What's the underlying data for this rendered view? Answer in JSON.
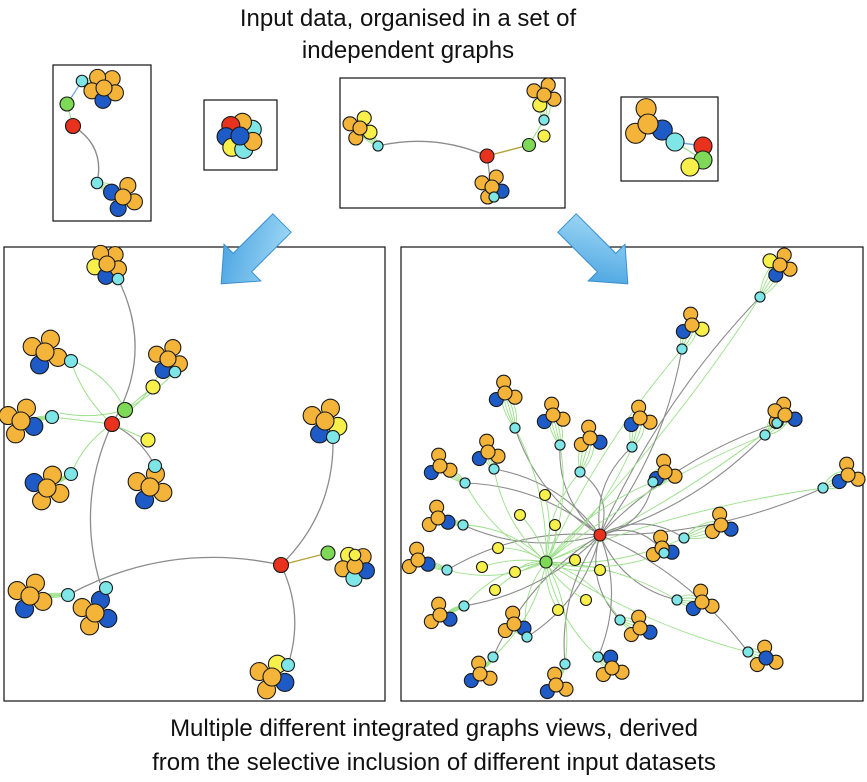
{
  "top_caption": {
    "line1": "Input data, organised in a set of",
    "line2": "independent graphs"
  },
  "bottom_caption": {
    "line1": "Multiple different integrated graphs views, derived",
    "line2": "from the selective inclusion of different input datasets"
  },
  "colors": {
    "node_orange": "#F4B43A",
    "node_blue": "#1E5BC6",
    "node_cyan": "#7FE6E8",
    "node_yellow": "#F7F04A",
    "node_green": "#7ED957",
    "node_red": "#E8321E",
    "edge_gray": "#8c8c8c",
    "edge_green": "#9BE08A",
    "edge_blue": "#6FA6E0",
    "arrow_fill": "#5AB3E8",
    "frame": "#111111"
  },
  "figure": {
    "input_graphs": 4,
    "integrated_views": 2
  }
}
